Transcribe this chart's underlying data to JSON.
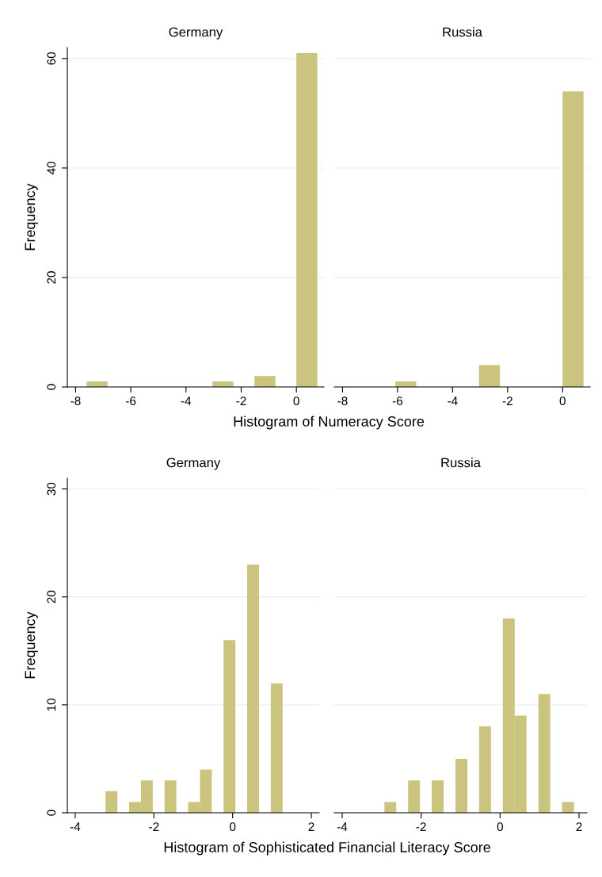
{
  "chart_data": [
    {
      "type": "histogram",
      "title": "Germany",
      "xlabel": "Histogram of Numeracy Score",
      "ylabel": "Frequency",
      "color": "#cbc47f",
      "bins": [
        -7.6,
        -6.84,
        -6.08,
        -5.32,
        -4.56,
        -3.8,
        -3.04,
        -2.28,
        -1.52,
        -0.76,
        0,
        0.76
      ],
      "values": [
        1,
        0,
        0,
        0,
        0,
        0,
        1,
        0,
        2,
        0,
        61
      ],
      "xlim": [
        -8.3,
        1
      ],
      "xticks": [
        -8,
        -6,
        -4,
        -2,
        0
      ],
      "ylim": [
        0,
        62
      ],
      "yticks": [
        0,
        20,
        40,
        60
      ],
      "grid": "y"
    },
    {
      "type": "histogram",
      "title": "Russia",
      "color": "#cbc47f",
      "bins": [
        -7.6,
        -6.84,
        -6.08,
        -5.32,
        -4.56,
        -3.8,
        -3.04,
        -2.28,
        -1.52,
        -0.76,
        0,
        0.76
      ],
      "values": [
        0,
        0,
        1,
        0,
        0,
        0,
        4,
        0,
        0,
        0,
        54
      ],
      "xlim": [
        -8.3,
        1
      ],
      "xticks": [
        -8,
        -6,
        -4,
        -2,
        0
      ],
      "yticks": [
        0,
        20,
        40,
        60
      ],
      "grid": "y",
      "tick_labels": "x"
    },
    {
      "type": "histogram",
      "title": "Germany",
      "xlabel": "Histogram of Sophisticated Financial Literacy Score",
      "ylabel": "Frequency",
      "color": "#cbc47f",
      "bins": [
        -3.23,
        -2.93,
        -2.63,
        -2.33,
        -2.03,
        -1.73,
        -1.43,
        -1.13,
        -0.83,
        -0.53,
        -0.23,
        0.07,
        0.37,
        0.67,
        0.97,
        1.27,
        1.57,
        1.87
      ],
      "values": [
        2,
        0,
        1,
        3,
        0,
        3,
        0,
        1,
        4,
        0,
        16,
        0,
        23,
        0,
        12,
        0,
        0
      ],
      "xlim": [
        -4.2,
        2.2
      ],
      "xticks": [
        -4,
        -2,
        0,
        2
      ],
      "ylim": [
        0,
        31
      ],
      "yticks": [
        0,
        10,
        20,
        30
      ],
      "grid": "y"
    },
    {
      "type": "histogram",
      "title": "Russia",
      "color": "#cbc47f",
      "bins": [
        -3.23,
        -2.93,
        -2.63,
        -2.33,
        -2.03,
        -1.73,
        -1.43,
        -1.13,
        -0.83,
        -0.53,
        -0.23,
        0.07,
        0.37,
        0.67,
        0.97,
        1.27,
        1.57,
        1.87
      ],
      "values": [
        0,
        1,
        0,
        3,
        0,
        3,
        0,
        5,
        0,
        8,
        0,
        18,
        9,
        0,
        11,
        0,
        1
      ],
      "xlim": [
        -4.2,
        2.2
      ],
      "xticks": [
        -4,
        -2,
        0,
        2
      ],
      "yticks": [
        0,
        10,
        20,
        30
      ],
      "grid": "y",
      "tick_labels": "x"
    }
  ]
}
